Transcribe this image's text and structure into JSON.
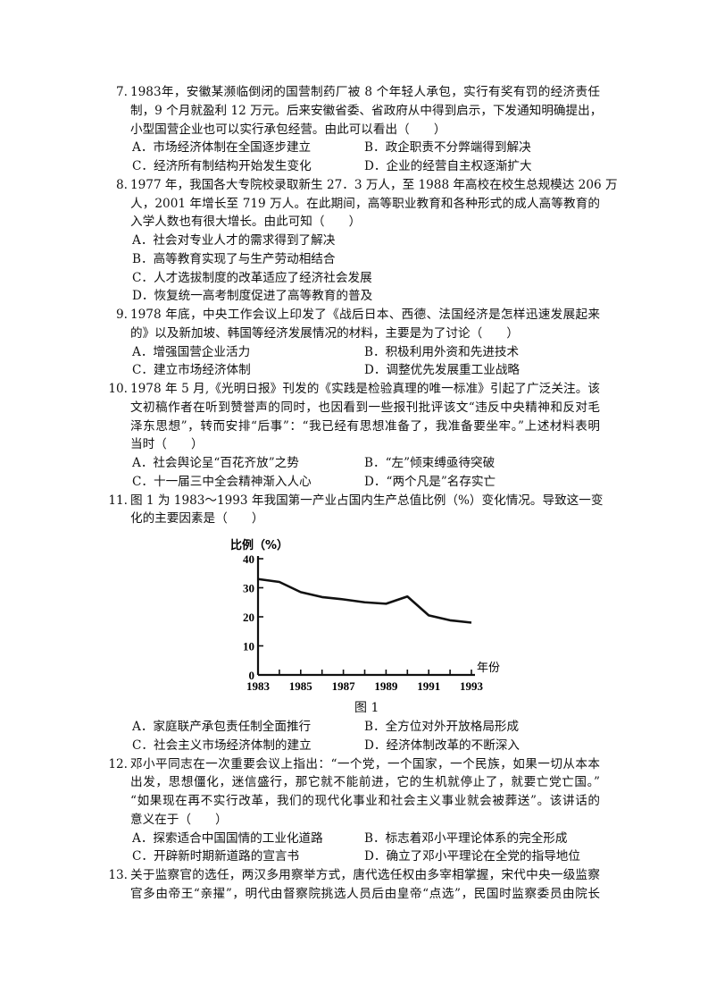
{
  "part1": [
    {
      "num": "7.",
      "stem": [
        "1983年，安徽某濒临倒闭的国营制药厂被 8 个年轻人承包，实行有奖有罚的经济责任",
        "制，9 个月就盈利 12 万元。后来安徽省委、省政府从中得到启示，下发通知明确提出，",
        "小型国营企业也可以实行承包经营。由此可以看出（　　）"
      ],
      "options": [
        [
          "A．市场经济体制在全国逐步建立",
          "B．政企职责不分弊端得到解决"
        ],
        [
          "C．经济所有制结构开始发生变化",
          "D．企业的经营自主权逐渐扩大"
        ]
      ]
    },
    {
      "num": "8.",
      "stem": [
        "1977 年，我国各大专院校录取新生 27．3 万人，至 1988 年高校在校生总规模达 206 万",
        "人，2001 年增长至 719 万人。在此期间，高等职业教育和各种形式的成人高等教育的",
        "入学人数也有很大增长。由此可知（　　）"
      ],
      "options": [
        [
          "A．社会对专业人才的需求得到了解决"
        ],
        [
          "B．高等教育实现了与生产劳动相结合"
        ],
        [
          "C．人才选拔制度的改革适应了经济社会发展"
        ],
        [
          "D．恢复统一高考制度促进了高等教育的普及"
        ]
      ]
    },
    {
      "num": "9.",
      "stem": [
        "1978 年底，中央工作会议上印发了《战后日本、西德、法国经济是怎样迅速发展起来",
        "的》以及新加坡、韩国等经济发展情况的材料，主要是为了讨论（　　）"
      ],
      "options": [
        [
          "A．增强国营企业活力",
          "B．积极利用外资和先进技术"
        ],
        [
          "C．建立市场经济体制",
          "D．调整优先发展重工业战略"
        ]
      ]
    },
    {
      "num": "10.",
      "stem": [
        "1978 年 5 月,《光明日报》刊发的《实践是检验真理的唯一标准》引起了广泛关注。该",
        "文初稿作者在听到赞誉声的同时，也因看到一些报刊批评该文“违反中央精神和反对毛",
        "泽东思想”，转而安排“后事”：“我已经有思想准备了，我准备要坐牢。”上述材料表明",
        "当时（　　）"
      ],
      "options": [
        [
          "A．社会舆论呈“百花齐放”之势",
          "B．“左”倾束缚亟待突破"
        ],
        [
          "C．十一届三中全会精神渐入人心",
          "D．“两个凡是”名存实亡"
        ]
      ]
    },
    {
      "num": "11.",
      "stem": [
        "图 1 为 1983～1993 年我国第一产业占国内生产总值比例（%）变化情况。导致这一变",
        "化的主要因素是（　　）"
      ],
      "options": []
    }
  ],
  "chart_data": {
    "type": "line",
    "title": "",
    "ylabel": "比例（%）",
    "xlabel": "年份",
    "caption": "图 1",
    "ylim": [
      0,
      40
    ],
    "xlim": [
      1983,
      1993
    ],
    "yticks": [
      "0",
      "10",
      "20",
      "30",
      "40"
    ],
    "xticks": [
      "1983",
      "1985",
      "1987",
      "1989",
      "1991",
      "1993"
    ],
    "x": [
      1983,
      1984,
      1985,
      1986,
      1987,
      1988,
      1989,
      1990,
      1991,
      1992,
      1993
    ],
    "values": [
      33,
      32,
      28.5,
      26.8,
      26,
      25,
      24.5,
      27,
      20.5,
      18.8,
      18
    ],
    "grid": false,
    "color": "#111111"
  },
  "part2": [
    {
      "num": "",
      "stem": [],
      "options": [
        [
          "A．家庭联产承包责任制全面推行",
          "B．全方位对外开放格局形成"
        ],
        [
          "C．社会主义市场经济体制的建立",
          "D．经济体制改革的不断深入"
        ]
      ]
    },
    {
      "num": "12.",
      "stem": [
        "邓小平同志在一次重要会议上指出：“一个党，一个国家，一个民族，如果一切从本本",
        "出发，思想僵化，迷信盛行，那它就不能前进，它的生机就停止了，就要亡党亡国。”",
        "“如果现在再不实行改革，我们的现代化事业和社会主义事业就会被葬送”。该讲话的",
        "意义在于（　　）"
      ],
      "options": [
        [
          "A．探索适合中国国情的工业化道路",
          "B．标志着邓小平理论体系的完全形成"
        ],
        [
          "C．开辟新时期新道路的宣言书",
          "D．确立了邓小平理论在全党的指导地位"
        ]
      ]
    },
    {
      "num": "13.",
      "stem": [
        "关于监察官的选任，两汉多用察举方式，唐代选任权由多宰相掌握，宋代中央一级监察",
        "官多由帝王“亲擢”，明代由督察院挑选人员后由皇帝“点选”，民国时监察委员由院长"
      ],
      "options": [],
      "continues": true
    }
  ]
}
